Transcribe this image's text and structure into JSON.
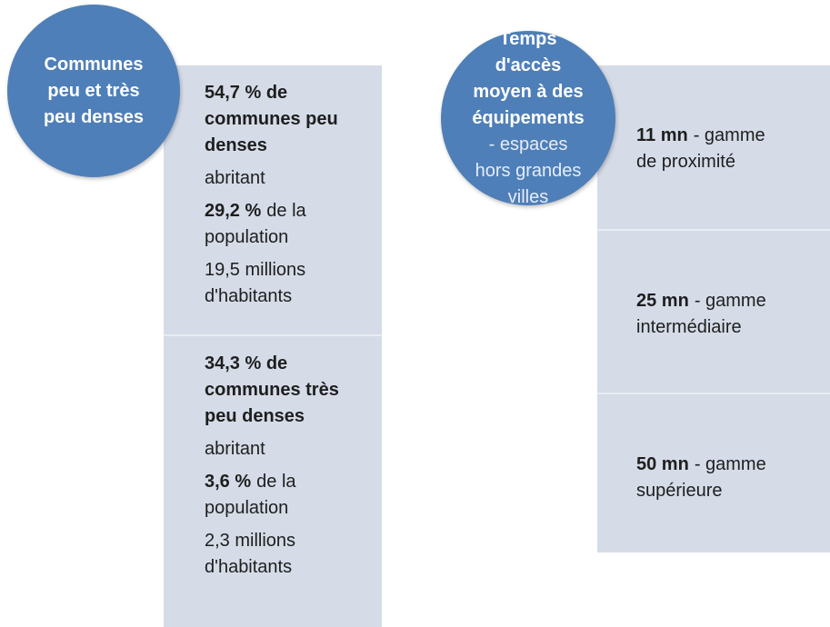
{
  "left": {
    "circle_lines": [
      "Communes",
      "peu et très",
      "peu denses"
    ],
    "panels": [
      {
        "heading": "54,7 % de communes peu denses",
        "connector": "abritant",
        "share_value": "29,2 %",
        "share_text": "de la population",
        "inhabitants": "19,5 millions d'habitants"
      },
      {
        "heading": "34,3 % de communes très peu denses",
        "connector": "abritant",
        "share_value": "3,6 %",
        "share_text": "de la population",
        "inhabitants": "2,3 millions d'habitants"
      }
    ]
  },
  "right": {
    "circle_title_lines": [
      "Temps",
      "d'accès",
      "moyen à des",
      "équipements"
    ],
    "circle_subtitle_lines": [
      "- espaces",
      "hors grandes",
      "villes"
    ],
    "items": [
      {
        "time": "11 mn",
        "range": "- gamme de proximité"
      },
      {
        "time": "25 mn",
        "range": "- gamme intermédiaire"
      },
      {
        "time": "50 mn",
        "range": "- gamme supérieure"
      }
    ]
  }
}
